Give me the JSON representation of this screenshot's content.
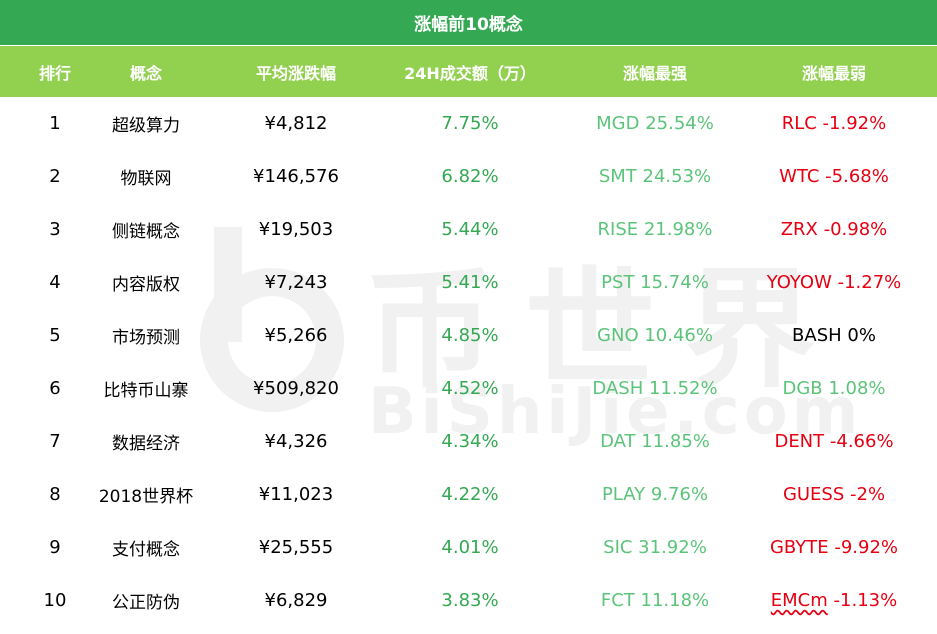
{
  "title": "涨幅前10概念",
  "headers": [
    "排行",
    "概念",
    "平均涨跌幅",
    "24H成交额（万）",
    "涨幅最强",
    "涨幅最弱"
  ],
  "watermark": {
    "cn": "币世界",
    "en": "BiShiJie.com"
  },
  "colors": {
    "title_bg": "#34a853",
    "header_bg": "#92d050",
    "gain": "#34a853",
    "strong": "#5cc47a",
    "down": "#e60012"
  },
  "rows": [
    {
      "rank": "1",
      "concept": "超级算力",
      "avg": "¥4,812",
      "volume": "7.75%",
      "strongest": "MGD  25.54%",
      "weakest": "RLC  -1.92%",
      "weak_color": "down"
    },
    {
      "rank": "2",
      "concept": "物联网",
      "avg": "¥146,576",
      "volume": "6.82%",
      "strongest": "SMT  24.53%",
      "weakest": "WTC  -5.68%",
      "weak_color": "down"
    },
    {
      "rank": "3",
      "concept": "侧链概念",
      "avg": "¥19,503",
      "volume": "5.44%",
      "strongest": "RISE  21.98%",
      "weakest": "ZRX  -0.98%",
      "weak_color": "down"
    },
    {
      "rank": "4",
      "concept": "内容版权",
      "avg": "¥7,243",
      "volume": "5.41%",
      "strongest": "PST  15.74%",
      "weakest": "YOYOW -1.27%",
      "weak_color": "down"
    },
    {
      "rank": "5",
      "concept": "市场预测",
      "avg": "¥5,266",
      "volume": "4.85%",
      "strongest": "GNO  10.46%",
      "weakest": "BASH  0%",
      "weak_color": "neutral"
    },
    {
      "rank": "6",
      "concept": "比特币山寨",
      "avg": "¥509,820",
      "volume": "4.52%",
      "strongest": "DASH  11.52%",
      "weakest": "DGB  1.08%",
      "weak_color": "up"
    },
    {
      "rank": "7",
      "concept": "数据经济",
      "avg": "¥4,326",
      "volume": "4.34%",
      "strongest": "DAT  11.85%",
      "weakest": "DENT  -4.66%",
      "weak_color": "down"
    },
    {
      "rank": "8",
      "concept": "2018世界杯",
      "avg": "¥11,023",
      "volume": "4.22%",
      "strongest": "PLAY  9.76%",
      "weakest": "GUESS  -2%",
      "weak_color": "down"
    },
    {
      "rank": "9",
      "concept": "支付概念",
      "avg": "¥25,555",
      "volume": "4.01%",
      "strongest": "SIC  31.92%",
      "weakest": "GBYTE  -9.92%",
      "weak_color": "down"
    },
    {
      "rank": "10",
      "concept": "公正防伪",
      "avg": "¥6,829",
      "volume": "3.83%",
      "strongest": "FCT  11.18%",
      "weakest_symbol": "EMCm",
      "weakest_value": "-1.13%",
      "weak_color": "down"
    }
  ]
}
